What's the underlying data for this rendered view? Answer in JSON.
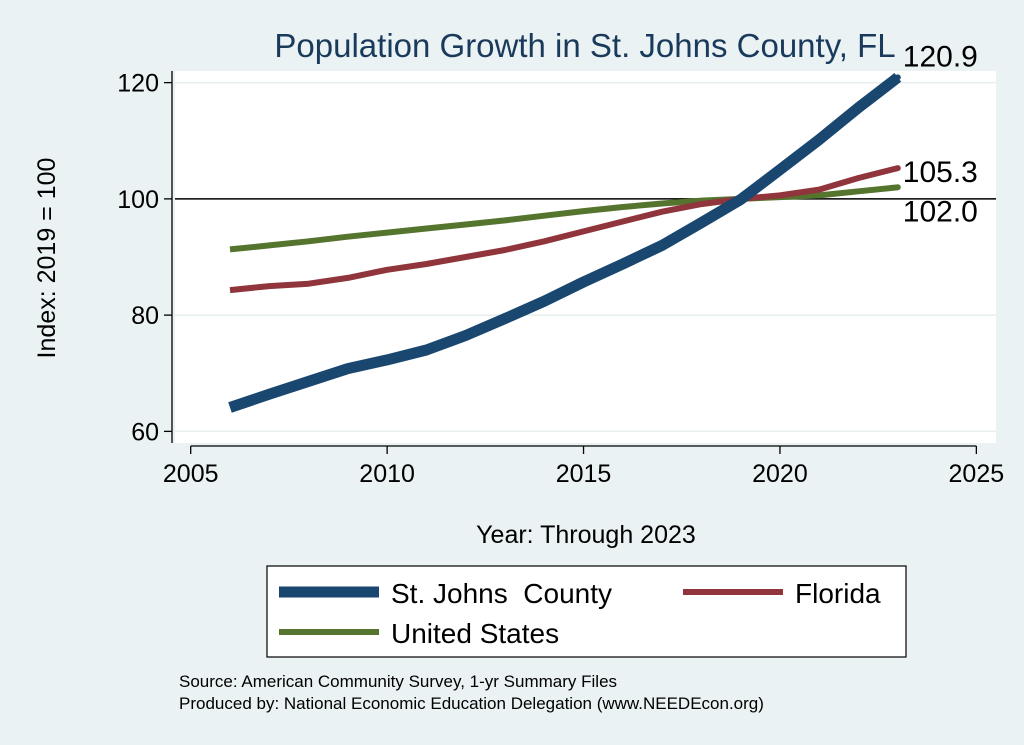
{
  "chart_data": {
    "type": "line",
    "title": "Population Growth in St. Johns County, FL",
    "xlabel": "Year: Through 2023",
    "ylabel": "Index: 2019 = 100",
    "xlim": [
      2005,
      2025
    ],
    "ylim": [
      58,
      122
    ],
    "xticks": [
      "2005",
      "2010",
      "2015",
      "2020",
      "2025"
    ],
    "yticks": [
      "60",
      "80",
      "100",
      "120"
    ],
    "reference_line": 100,
    "grid": true,
    "legend_position": "bottom",
    "x": [
      2006,
      2007,
      2008,
      2009,
      2010,
      2011,
      2012,
      2013,
      2014,
      2015,
      2016,
      2017,
      2018,
      2019,
      2020,
      2021,
      2022,
      2023
    ],
    "series": [
      {
        "name": "St. Johns  County",
        "color": "#1a476f",
        "values": [
          64.1,
          66.4,
          68.6,
          70.8,
          72.3,
          74.0,
          76.5,
          79.4,
          82.4,
          85.7,
          88.8,
          92.0,
          95.9,
          99.9,
          105.0,
          110.2,
          115.7,
          120.9
        ]
      },
      {
        "name": "Florida",
        "color": "#90353b",
        "values": [
          84.3,
          85.0,
          85.4,
          86.4,
          87.8,
          88.8,
          90.0,
          91.2,
          92.7,
          94.4,
          96.1,
          97.8,
          99.1,
          100.0,
          100.6,
          101.6,
          103.6,
          105.3
        ]
      },
      {
        "name": "United States",
        "color": "#55752f",
        "values": [
          91.3,
          92.0,
          92.7,
          93.5,
          94.2,
          94.9,
          95.6,
          96.3,
          97.1,
          97.9,
          98.6,
          99.2,
          99.7,
          100.0,
          100.3,
          100.6,
          101.3,
          102.0
        ]
      }
    ],
    "end_labels": [
      "120.9",
      "105.3",
      "102.0"
    ]
  },
  "source_line": "Source: American Community Survey, 1-yr Summary Files",
  "produced_line": "Produced by: National Economic Education Delegation (www.NEEDEcon.org)"
}
